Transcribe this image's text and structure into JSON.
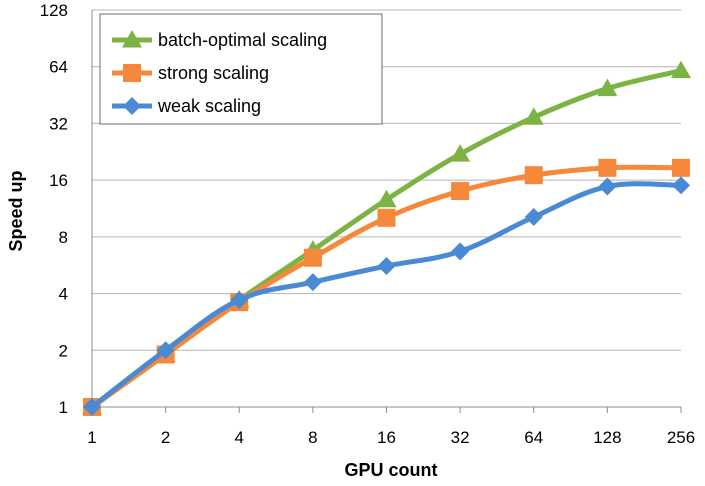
{
  "chart_data": {
    "type": "line",
    "title": "",
    "xlabel": "GPU count",
    "ylabel": "Speed up",
    "x_scale": "log2",
    "y_scale": "log2",
    "x": [
      1,
      2,
      4,
      8,
      16,
      32,
      64,
      128,
      256
    ],
    "x_tick_labels": [
      "1",
      "2",
      "4",
      "8",
      "16",
      "32",
      "64",
      "128",
      "256"
    ],
    "y_ticks": [
      1,
      2,
      4,
      8,
      16,
      32,
      64,
      128
    ],
    "y_tick_labels": [
      "1",
      "2",
      "4",
      "8",
      "16",
      "32",
      "64",
      "128"
    ],
    "ylim": [
      1,
      128
    ],
    "grid": "horizontal",
    "legend_position": "top-left",
    "series": [
      {
        "name": "batch-optimal scaling",
        "color": "#7cb342",
        "marker": "triangle",
        "values": [
          1.0,
          1.9,
          3.7,
          6.8,
          12.6,
          22.0,
          34.5,
          49.0,
          61.0
        ]
      },
      {
        "name": "strong scaling",
        "color": "#f5883a",
        "marker": "square",
        "values": [
          1.0,
          1.9,
          3.6,
          6.2,
          10.1,
          14.0,
          17.0,
          18.6,
          18.6
        ]
      },
      {
        "name": "weak scaling",
        "color": "#4a8ad4",
        "marker": "diamond",
        "values": [
          1.0,
          2.0,
          3.7,
          4.6,
          5.6,
          6.7,
          10.2,
          14.8,
          15.0
        ]
      }
    ]
  }
}
